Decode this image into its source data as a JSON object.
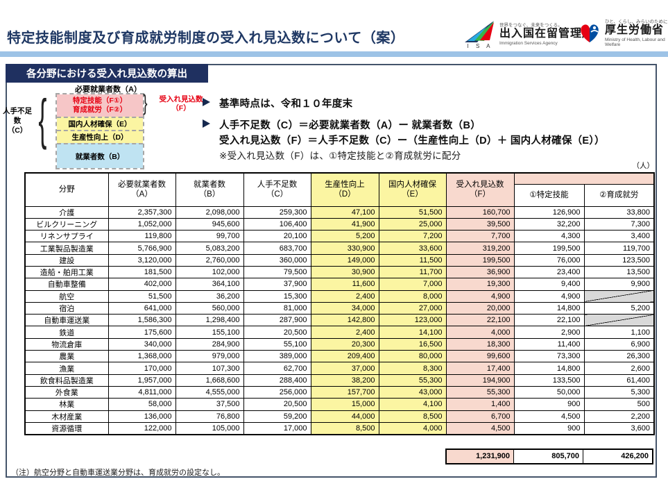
{
  "header": {
    "title": "特定技能制度及び育成就労制度の受入れ見込数について（案）",
    "isa": {
      "tagline": "世界をつなぐ、未来をつくる。",
      "name": "出入国在留管理庁",
      "subname": "Immigration Services Agency",
      "abbr": "I S A"
    },
    "mhlw": {
      "tagline": "ひと、くらし、みらいのために",
      "name": "厚生労働省",
      "subname": "Ministry of Health, Labour and Welfare"
    }
  },
  "section_title": "各分野における受入れ見込数の算出",
  "diagram": {
    "top_label": "必要就業者数（A）",
    "pink_line1": "特定技能（F①）",
    "pink_line2": "育成就労（F②）",
    "yellow1": "国内人材確保（E）",
    "yellow2": "生産性向上（D）",
    "blue": "就業者数（B）",
    "left_label_line1": "人手不足数",
    "left_label_line2": "（C）",
    "right_label_line1": "受入れ見込数",
    "right_label_line2": "（F）"
  },
  "bullets": {
    "b1": "基準時点は、令和１０年度末",
    "b2_line1": "人手不足数（C）＝必要就業者数（A）ー 就業者数（B）",
    "b2_line2": "受入れ見込数（F）＝人手不足数（C）ー（生産性向上（D）＋ 国内人材確保（E））",
    "b2_line3": "※受入れ見込数（F）は、①特定技能と②育成就労に配分"
  },
  "table": {
    "unit_label": "（人）",
    "headers": [
      {
        "label": "分野",
        "sub": ""
      },
      {
        "label": "必要就業者数",
        "sub": "（A）"
      },
      {
        "label": "就業者数",
        "sub": "（B）"
      },
      {
        "label": "人手不足数",
        "sub": "（C）"
      },
      {
        "label": "生産性向上",
        "sub": "（D）"
      },
      {
        "label": "国内人材確保",
        "sub": "（E）"
      },
      {
        "label": "受入れ見込数",
        "sub": "（F）"
      },
      {
        "label": "①特定技能",
        "sub": ""
      },
      {
        "label": "②育成就労",
        "sub": ""
      }
    ],
    "rows": [
      [
        "介護",
        "2,357,300",
        "2,098,000",
        "259,300",
        "47,100",
        "51,500",
        "160,700",
        "126,900",
        "33,800"
      ],
      [
        "ビルクリーニング",
        "1,052,000",
        "945,600",
        "106,400",
        "41,900",
        "25,000",
        "39,500",
        "32,200",
        "7,300"
      ],
      [
        "リネンサプライ",
        "119,800",
        "99,700",
        "20,100",
        "5,200",
        "7,200",
        "7,700",
        "4,300",
        "3,400"
      ],
      [
        "工業製品製造業",
        "5,766,900",
        "5,083,200",
        "683,700",
        "330,900",
        "33,600",
        "319,200",
        "199,500",
        "119,700"
      ],
      [
        "建設",
        "3,120,000",
        "2,760,000",
        "360,000",
        "149,000",
        "11,500",
        "199,500",
        "76,000",
        "123,500"
      ],
      [
        "造船・舶用工業",
        "181,500",
        "102,000",
        "79,500",
        "30,900",
        "11,700",
        "36,900",
        "23,400",
        "13,500"
      ],
      [
        "自動車整備",
        "402,000",
        "364,100",
        "37,900",
        "11,600",
        "7,000",
        "19,300",
        "9,400",
        "9,900"
      ],
      [
        "航空",
        "51,500",
        "36,200",
        "15,300",
        "2,400",
        "8,000",
        "4,900",
        "4,900",
        null
      ],
      [
        "宿泊",
        "641,000",
        "560,000",
        "81,000",
        "34,000",
        "27,000",
        "20,000",
        "14,800",
        "5,200"
      ],
      [
        "自動車運送業",
        "1,586,300",
        "1,298,400",
        "287,900",
        "142,800",
        "123,000",
        "22,100",
        "22,100",
        null
      ],
      [
        "鉄道",
        "175,600",
        "155,100",
        "20,500",
        "2,400",
        "14,100",
        "4,000",
        "2,900",
        "1,100"
      ],
      [
        "物流倉庫",
        "340,000",
        "284,900",
        "55,100",
        "20,300",
        "16,500",
        "18,300",
        "11,400",
        "6,900"
      ],
      [
        "農業",
        "1,368,000",
        "979,000",
        "389,000",
        "209,400",
        "80,000",
        "99,600",
        "73,300",
        "26,300"
      ],
      [
        "漁業",
        "170,000",
        "107,300",
        "62,700",
        "37,000",
        "8,300",
        "17,400",
        "14,800",
        "2,600"
      ],
      [
        "飲食料品製造業",
        "1,957,000",
        "1,668,600",
        "288,400",
        "38,200",
        "55,300",
        "194,900",
        "133,500",
        "61,400"
      ],
      [
        "外食業",
        "4,811,000",
        "4,555,000",
        "256,000",
        "157,700",
        "43,000",
        "55,300",
        "50,000",
        "5,300"
      ],
      [
        "林業",
        "58,000",
        "37,500",
        "20,500",
        "15,000",
        "4,100",
        "1,400",
        "900",
        "500"
      ],
      [
        "木材産業",
        "136,000",
        "76,800",
        "59,200",
        "44,000",
        "8,500",
        "6,700",
        "4,500",
        "2,200"
      ],
      [
        "資源循環",
        "122,000",
        "105,000",
        "17,000",
        "8,500",
        "4,000",
        "4,500",
        "900",
        "3,600"
      ]
    ],
    "totals": [
      "1,231,900",
      "805,700",
      "426,200"
    ]
  },
  "note": "（注）航空分野と自動車運送業分野は、育成就労の設定なし。",
  "colors": {
    "navy": "#1F3864",
    "light_blue": "#9DC3E6",
    "yellow": "#FBF5A2",
    "pink": "#F8D9CE",
    "diagram_pink": "#F6C6C7",
    "diagram_blue": "#BFE3F2",
    "red": "#E60012",
    "gray": "#D9D9D9"
  }
}
